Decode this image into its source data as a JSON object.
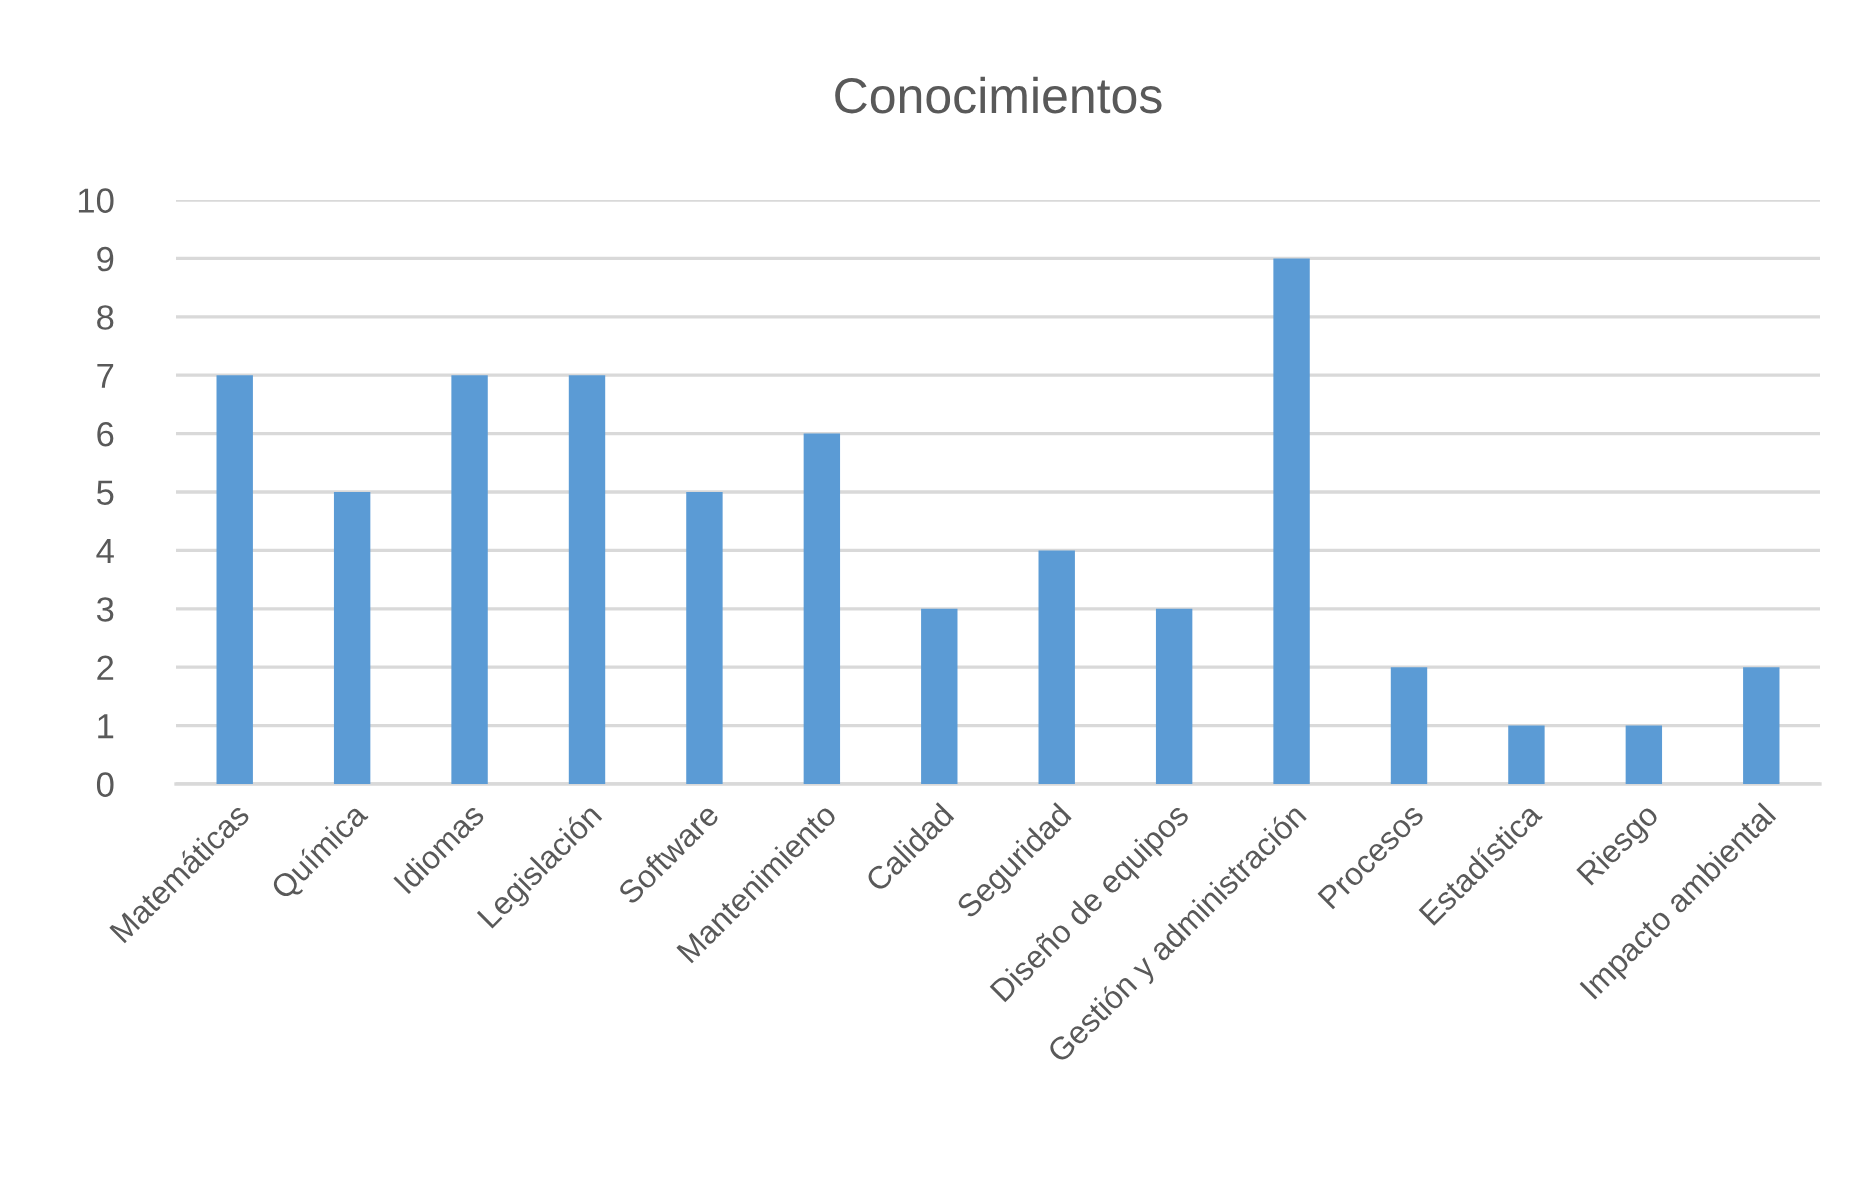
{
  "chart_data": {
    "type": "bar",
    "title": "Conocimientos",
    "categories": [
      "Matemáticas",
      "Química",
      "Idiomas",
      "Legislación",
      "Software",
      "Mantenimiento",
      "Calidad",
      "Seguridad",
      "Diseño de equipos",
      "Gestión y administración",
      "Procesos",
      "Estadística",
      "Riesgo",
      "Impacto ambiental"
    ],
    "values": [
      7,
      5,
      7,
      7,
      5,
      6,
      3,
      4,
      3,
      9,
      2,
      1,
      1,
      2
    ],
    "color": "#5b9bd5",
    "ylim": [
      0,
      10
    ],
    "yticks": [
      0,
      1,
      2,
      3,
      4,
      5,
      6,
      7,
      8,
      9,
      10
    ],
    "grid": "y",
    "legend": false
  }
}
